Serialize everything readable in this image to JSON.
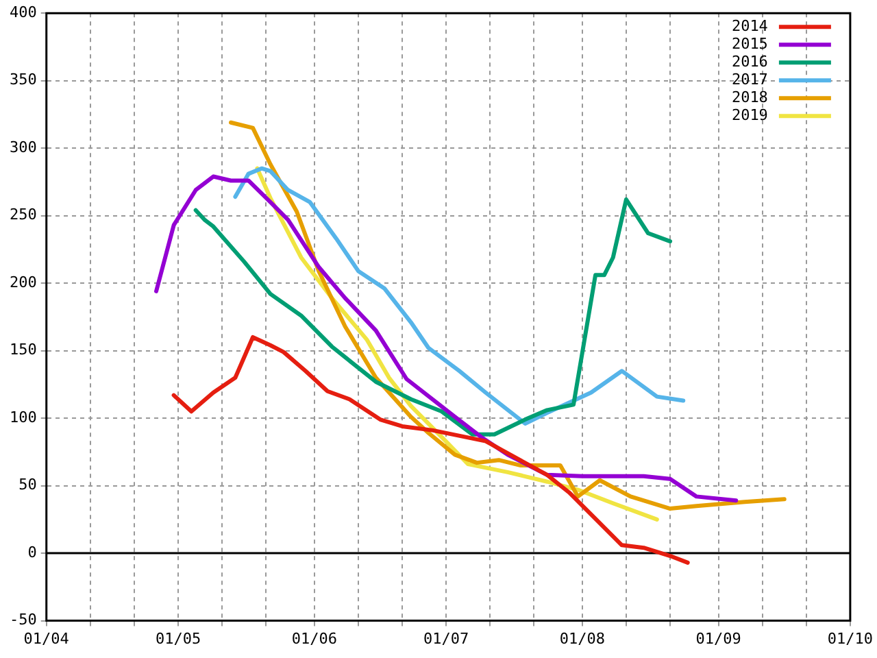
{
  "chart_data": {
    "type": "line",
    "xlim": [
      "--04-01",
      "--10-01"
    ],
    "ylim": [
      -50,
      400
    ],
    "xticks": [
      {
        "value": "--04-01",
        "label": "01/04"
      },
      {
        "value": "--04-11",
        "label": null
      },
      {
        "value": "--04-21",
        "label": null
      },
      {
        "value": "--05-01",
        "label": "01/05"
      },
      {
        "value": "--05-11",
        "label": null
      },
      {
        "value": "--05-21",
        "label": null
      },
      {
        "value": "--06-01",
        "label": "01/06"
      },
      {
        "value": "--06-11",
        "label": null
      },
      {
        "value": "--06-21",
        "label": null
      },
      {
        "value": "--07-01",
        "label": "01/07"
      },
      {
        "value": "--07-11",
        "label": null
      },
      {
        "value": "--07-21",
        "label": null
      },
      {
        "value": "--08-01",
        "label": "01/08"
      },
      {
        "value": "--08-11",
        "label": null
      },
      {
        "value": "--08-21",
        "label": null
      },
      {
        "value": "--09-01",
        "label": "01/09"
      },
      {
        "value": "--09-11",
        "label": null
      },
      {
        "value": "--09-21",
        "label": null
      },
      {
        "value": "--10-01",
        "label": "01/10"
      }
    ],
    "yticks": [
      -50,
      0,
      50,
      100,
      150,
      200,
      250,
      300,
      350,
      400
    ],
    "grid": true,
    "legend": "top right",
    "marker": "none",
    "line_style": "solid",
    "ref_lines": [
      {
        "axis": "y",
        "value": 0,
        "color": "#000000"
      }
    ],
    "series": [
      {
        "name": "2014",
        "color": "#e51e10",
        "x": [
          "--04-30",
          "--05-04",
          "--05-09",
          "--05-14",
          "--05-18",
          "--05-22",
          "--05-25",
          "--05-30",
          "--06-04",
          "--06-09",
          "--06-16",
          "--06-21",
          "--06-28",
          "--07-10",
          "--07-24",
          "--07-29",
          "--08-10",
          "--08-15",
          "--08-21",
          "--08-25"
        ],
        "values": [
          117,
          105,
          119,
          130,
          160,
          154,
          149,
          135,
          120,
          114,
          99,
          94,
          91,
          83,
          58,
          45,
          6,
          4,
          -2,
          -7
        ]
      },
      {
        "name": "2015",
        "color": "#9400d3",
        "x": [
          "--04-26",
          "--04-30",
          "--05-05",
          "--05-09",
          "--05-13",
          "--05-17",
          "--05-22",
          "--05-26",
          "--06-02",
          "--06-08",
          "--06-15",
          "--06-22",
          "--07-03",
          "--07-09",
          "--07-15",
          "--07-24",
          "--08-01",
          "--08-15",
          "--08-21",
          "--08-27",
          "--09-05"
        ],
        "values": [
          194,
          243,
          269,
          279,
          276,
          276,
          260,
          247,
          212,
          189,
          165,
          129,
          101,
          86,
          73,
          58,
          57,
          57,
          55,
          42,
          39
        ]
      },
      {
        "name": "2016",
        "color": "#009e73",
        "x": [
          "--05-05",
          "--05-07",
          "--05-09",
          "--05-16",
          "--05-22",
          "--05-29",
          "--06-05",
          "--06-15",
          "--06-23",
          "--06-30",
          "--07-07",
          "--07-12",
          "--07-19",
          "--07-24",
          "--07-30",
          "--08-04",
          "--08-06",
          "--08-08",
          "--08-11",
          "--08-16",
          "--08-21"
        ],
        "values": [
          254,
          247,
          242,
          216,
          192,
          176,
          153,
          127,
          114,
          105,
          88,
          88,
          99,
          106,
          110,
          206,
          206,
          219,
          262,
          237,
          231
        ]
      },
      {
        "name": "2017",
        "color": "#56b4e9",
        "x": [
          "--05-14",
          "--05-17",
          "--05-20",
          "--05-22",
          "--05-26",
          "--05-31",
          "--06-06",
          "--06-11",
          "--06-17",
          "--06-23",
          "--06-27",
          "--07-04",
          "--07-10",
          "--07-19",
          "--07-24",
          "--08-03",
          "--08-10",
          "--08-18",
          "--08-24"
        ],
        "values": [
          264,
          281,
          285,
          283,
          269,
          260,
          233,
          209,
          196,
          171,
          152,
          135,
          119,
          96,
          104,
          119,
          135,
          116,
          113
        ]
      },
      {
        "name": "2018",
        "color": "#e69f00",
        "x": [
          "--05-13",
          "--05-18",
          "--05-22",
          "--05-28",
          "--06-02",
          "--06-08",
          "--06-15",
          "--06-23",
          "--06-27",
          "--07-03",
          "--07-08",
          "--07-13",
          "--07-18",
          "--07-27",
          "--07-31",
          "--08-05",
          "--08-12",
          "--08-21",
          "--08-27",
          "--09-07",
          "--09-16"
        ],
        "values": [
          319,
          315,
          288,
          253,
          209,
          168,
          130,
          101,
          89,
          73,
          67,
          69,
          65,
          65,
          42,
          54,
          42,
          33,
          35,
          38,
          40
        ]
      },
      {
        "name": "2019",
        "color": "#f0e442",
        "x": [
          "--05-19",
          "--05-22",
          "--05-29",
          "--06-05",
          "--06-13",
          "--06-18",
          "--06-23",
          "--06-30",
          "--07-06",
          "--07-15",
          "--07-24",
          "--07-31",
          "--08-08",
          "--08-18"
        ],
        "values": [
          285,
          263,
          219,
          189,
          158,
          130,
          109,
          86,
          66,
          60,
          53,
          47,
          37,
          25
        ]
      }
    ]
  }
}
